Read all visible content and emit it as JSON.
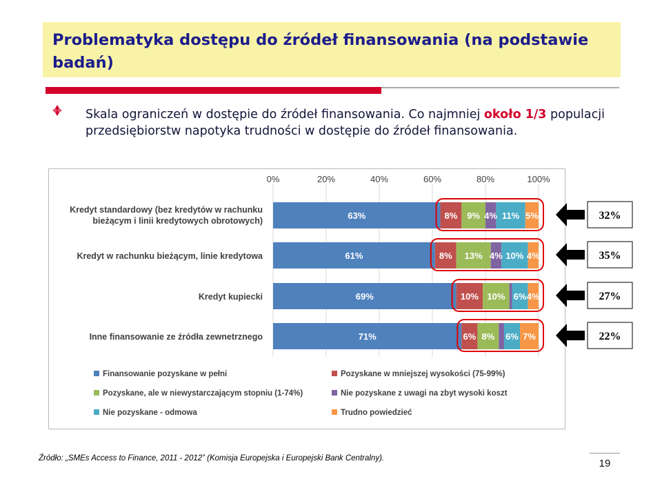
{
  "slide": {
    "title": "Problematyka dostępu do źródeł finansowania (na podstawie badań)",
    "bullet_lead": "Skala ograniczeń w dostępie do źródeł finansowania. Co najmniej ",
    "bullet_highlight": "około 1/3",
    "bullet_tail": " populacji przedsiębiorstw napotyka trudności w dostępie do źródeł finansowania.",
    "source": "Źródło: „SMEs Access to Finance, 2011 - 2012” (Komisja Europejska i Europejski Bank Centralny).",
    "page_number": "19",
    "bullet_icon": "diamond-bullet-icon",
    "accent_color": "#d3002b",
    "title_bg_color": "#f8f3a6",
    "title_color": "#1c1c8c"
  },
  "chart_data": {
    "type": "bar",
    "orientation": "horizontal-stacked-100",
    "x_ticks": [
      "0%",
      "20%",
      "40%",
      "60%",
      "80%",
      "100%"
    ],
    "xlim": [
      0,
      100
    ],
    "categories": [
      "Kredyt standardowy (bez kredytów w rachunku bieżącym i linii kredytowych obrotowych)",
      "Kredyt w rachunku bieżącym, linie kredytowa",
      "Kredyt kupiecki",
      "Inne finansowanie ze źródła zewnetrznego"
    ],
    "series": [
      {
        "name": "Finansowanie pozyskane w pełni",
        "color": "#4f81bd",
        "values": [
          63,
          61,
          69,
          71
        ],
        "labels": [
          "63%",
          "61%",
          "69%",
          "71%"
        ]
      },
      {
        "name": "Pozyskane w mniejszej wysokości (75-99%)",
        "color": "#c0504d",
        "values": [
          8,
          8,
          10,
          6
        ],
        "labels": [
          "8%",
          "8%",
          "10%",
          "6%"
        ]
      },
      {
        "name": "Pozyskane, ale w niewystarczającym stopniu (1-74%)",
        "color": "#9bbb59",
        "values": [
          9,
          13,
          10,
          8
        ],
        "labels": [
          "9%",
          "13%",
          "10%",
          "8%"
        ]
      },
      {
        "name": "Nie pozyskane z uwagi na zbyt wysoki koszt",
        "color": "#8064a2",
        "values": [
          4,
          4,
          1,
          2
        ],
        "labels": [
          "4%",
          "4%",
          "1%",
          "2%"
        ]
      },
      {
        "name": "Nie pozyskane - odmowa",
        "color": "#4bacc6",
        "values": [
          11,
          10,
          6,
          6
        ],
        "labels": [
          "11%",
          "10%",
          "6%",
          "6%"
        ]
      },
      {
        "name": "Trudno powiedzieć",
        "color": "#f79646",
        "values": [
          5,
          4,
          4,
          7
        ],
        "labels": [
          "5%",
          "4%",
          "4%",
          "7%"
        ]
      }
    ],
    "above_bar_labels": [
      false,
      false,
      false,
      false,
      false,
      false
    ],
    "callouts": [
      "32%",
      "35%",
      "27%",
      "22%"
    ],
    "highlight_color": "#e00000",
    "legend_position": "bottom",
    "grid": true
  }
}
